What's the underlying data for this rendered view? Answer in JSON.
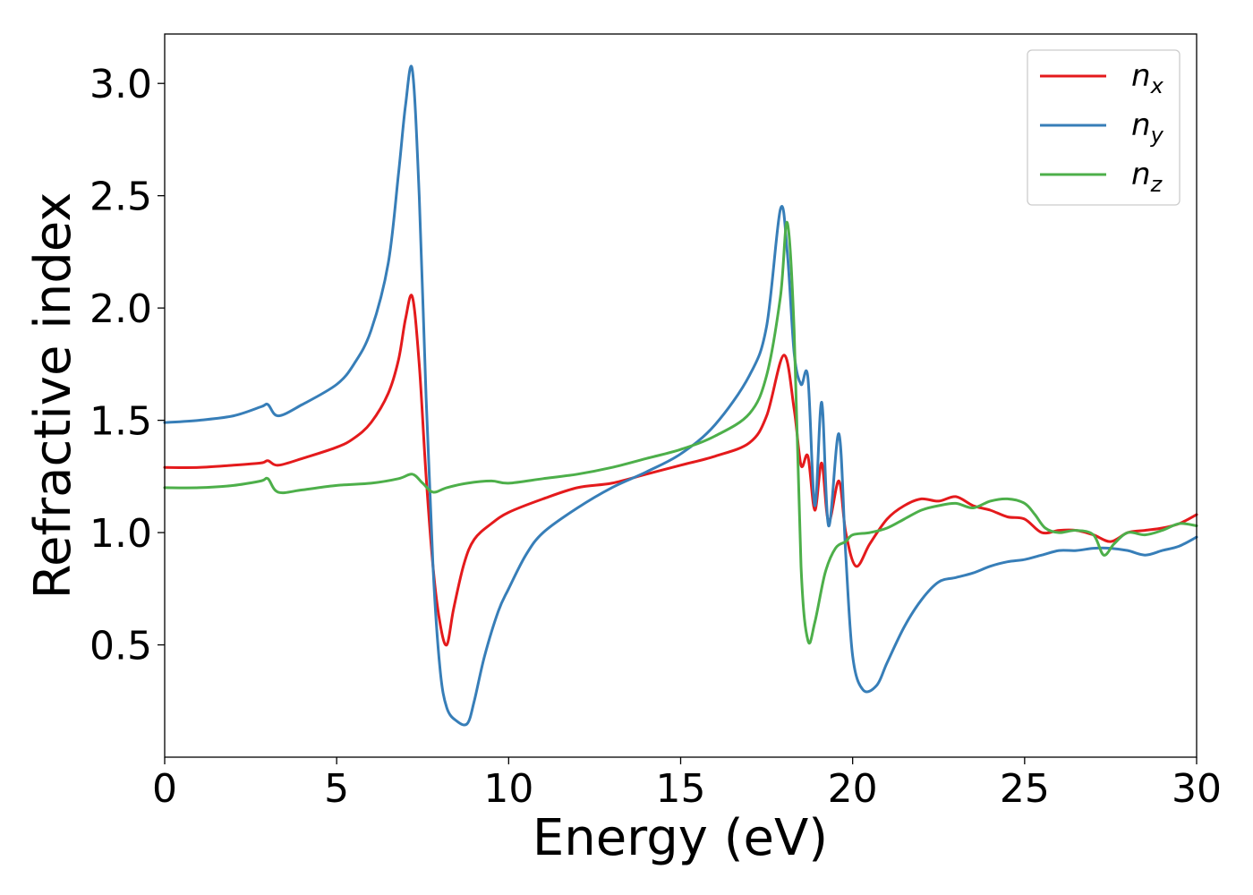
{
  "chart_data": {
    "type": "line",
    "title": "",
    "xlabel": "Energy (eV)",
    "ylabel": "Refractive index",
    "xlim": [
      0,
      30
    ],
    "ylim": [
      0.0,
      3.22
    ],
    "xticks": [
      0,
      5,
      10,
      15,
      20,
      25,
      30
    ],
    "xtick_labels": [
      "0",
      "5",
      "10",
      "15",
      "20",
      "25",
      "30"
    ],
    "yticks": [
      0.5,
      1.0,
      1.5,
      2.0,
      2.5,
      3.0
    ],
    "ytick_labels": [
      "0.5",
      "1.0",
      "1.5",
      "2.0",
      "2.5",
      "3.0"
    ],
    "grid": false,
    "legend_position": "top-right",
    "series": [
      {
        "name": "n_x",
        "label_base": "n",
        "label_sub": "x",
        "color": "#e41a1c",
        "x": [
          0,
          1,
          2,
          2.8,
          3.0,
          3.3,
          4,
          5,
          5.5,
          6,
          6.5,
          6.8,
          7.0,
          7.2,
          7.4,
          7.6,
          7.8,
          8.0,
          8.2,
          8.4,
          8.7,
          9,
          9.5,
          10,
          11,
          12,
          13,
          14,
          15,
          16,
          17,
          17.5,
          18.0,
          18.3,
          18.5,
          18.7,
          18.9,
          19.1,
          19.3,
          19.6,
          19.8,
          20.1,
          20.5,
          21,
          21.5,
          22,
          22.5,
          23,
          23.5,
          24,
          24.5,
          25,
          25.5,
          26,
          26.5,
          27,
          27.5,
          28,
          28.5,
          29,
          29.5,
          30
        ],
        "y": [
          1.29,
          1.29,
          1.3,
          1.31,
          1.32,
          1.3,
          1.33,
          1.38,
          1.42,
          1.49,
          1.62,
          1.77,
          1.95,
          2.05,
          1.75,
          1.25,
          0.85,
          0.6,
          0.5,
          0.66,
          0.86,
          0.97,
          1.04,
          1.09,
          1.15,
          1.2,
          1.22,
          1.26,
          1.3,
          1.34,
          1.4,
          1.52,
          1.79,
          1.55,
          1.3,
          1.34,
          1.1,
          1.31,
          1.05,
          1.23,
          1.0,
          0.85,
          0.95,
          1.06,
          1.12,
          1.15,
          1.14,
          1.16,
          1.12,
          1.1,
          1.07,
          1.06,
          1.0,
          1.01,
          1.01,
          0.99,
          0.96,
          1.0,
          1.01,
          1.02,
          1.04,
          1.08
        ]
      },
      {
        "name": "n_y",
        "label_base": "n",
        "label_sub": "y",
        "color": "#377eb8",
        "x": [
          0,
          1,
          2,
          2.8,
          3.0,
          3.3,
          4,
          5,
          5.5,
          6,
          6.5,
          6.8,
          7.0,
          7.2,
          7.4,
          7.6,
          7.8,
          8.0,
          8.2,
          8.5,
          8.8,
          9,
          9.3,
          9.7,
          10,
          10.5,
          11,
          12,
          13,
          14,
          15,
          16,
          17,
          17.5,
          17.9,
          18.1,
          18.3,
          18.5,
          18.7,
          18.9,
          19.1,
          19.3,
          19.6,
          19.8,
          20.0,
          20.3,
          20.7,
          21,
          21.5,
          22,
          22.5,
          23,
          23.5,
          24,
          24.5,
          25,
          25.5,
          26,
          26.5,
          27,
          27.5,
          28,
          28.5,
          29,
          29.5,
          30
        ],
        "y": [
          1.49,
          1.5,
          1.52,
          1.56,
          1.57,
          1.52,
          1.57,
          1.66,
          1.75,
          1.9,
          2.2,
          2.6,
          2.9,
          3.06,
          2.5,
          1.6,
          0.85,
          0.4,
          0.22,
          0.16,
          0.15,
          0.25,
          0.45,
          0.65,
          0.75,
          0.9,
          1.0,
          1.11,
          1.2,
          1.27,
          1.35,
          1.48,
          1.7,
          1.92,
          2.44,
          2.25,
          1.8,
          1.66,
          1.69,
          1.12,
          1.58,
          1.03,
          1.44,
          0.9,
          0.45,
          0.3,
          0.32,
          0.42,
          0.58,
          0.7,
          0.78,
          0.8,
          0.82,
          0.85,
          0.87,
          0.88,
          0.9,
          0.92,
          0.92,
          0.93,
          0.93,
          0.92,
          0.9,
          0.92,
          0.94,
          0.98
        ]
      },
      {
        "name": "n_z",
        "label_base": "n",
        "label_sub": "z",
        "color": "#4daf4a",
        "x": [
          0,
          1,
          2,
          2.8,
          3.0,
          3.3,
          4,
          5,
          6,
          6.8,
          7.2,
          7.5,
          7.8,
          8.2,
          8.8,
          9.5,
          10,
          11,
          12,
          13,
          14,
          15,
          16,
          17,
          17.5,
          17.9,
          18.1,
          18.3,
          18.5,
          18.7,
          18.9,
          19.2,
          19.5,
          19.8,
          20,
          20.5,
          21,
          21.5,
          22,
          22.5,
          23,
          23.5,
          24,
          24.5,
          25,
          25.3,
          25.6,
          26,
          26.5,
          27,
          27.3,
          27.6,
          28,
          28.5,
          29,
          29.5,
          30
        ],
        "y": [
          1.2,
          1.2,
          1.21,
          1.23,
          1.24,
          1.18,
          1.19,
          1.21,
          1.22,
          1.24,
          1.26,
          1.22,
          1.18,
          1.2,
          1.22,
          1.23,
          1.22,
          1.24,
          1.26,
          1.29,
          1.33,
          1.37,
          1.43,
          1.53,
          1.7,
          2.05,
          2.38,
          1.9,
          0.85,
          0.52,
          0.6,
          0.82,
          0.93,
          0.96,
          0.99,
          1.0,
          1.02,
          1.06,
          1.1,
          1.12,
          1.13,
          1.11,
          1.14,
          1.15,
          1.13,
          1.08,
          1.02,
          1.0,
          1.01,
          0.99,
          0.9,
          0.95,
          1.0,
          0.99,
          1.01,
          1.04,
          1.03
        ]
      }
    ]
  }
}
